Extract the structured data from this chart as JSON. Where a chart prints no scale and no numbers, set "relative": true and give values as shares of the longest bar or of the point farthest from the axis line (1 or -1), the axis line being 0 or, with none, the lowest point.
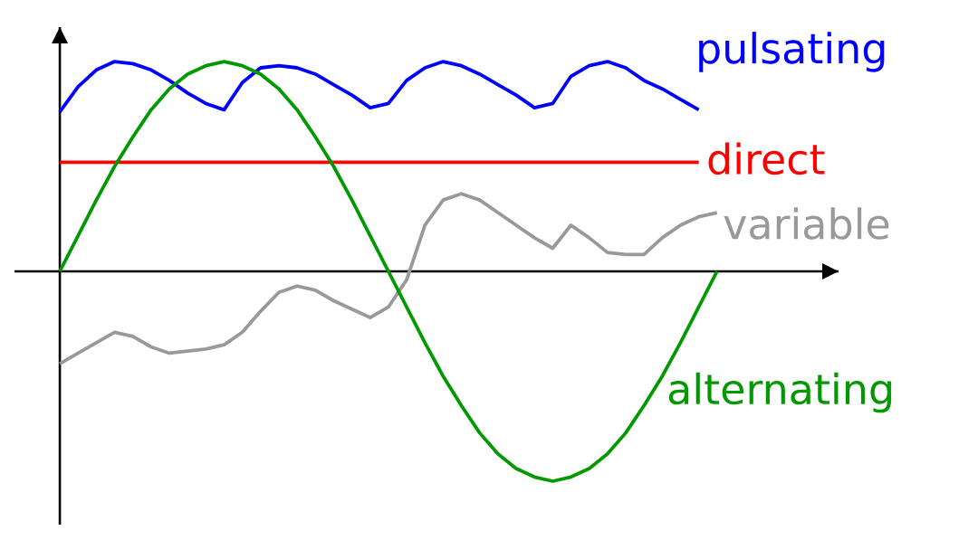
{
  "chart_data": {
    "type": "line",
    "relative": true,
    "categories": [
      null,
      null,
      null,
      null,
      null,
      null,
      null,
      null,
      null,
      null,
      null,
      null,
      null,
      null,
      null,
      null,
      null,
      null,
      null,
      null,
      null,
      null,
      null,
      null,
      null,
      null,
      null,
      null,
      null,
      null,
      null,
      null,
      null,
      null,
      null,
      null,
      null
    ],
    "series": [
      {
        "name": "pulsating",
        "color": "#0000ff",
        "values": [
          0.76,
          0.88,
          0.96,
          1.0,
          0.99,
          0.96,
          0.91,
          0.85,
          0.8,
          0.77,
          0.9,
          0.97,
          0.98,
          0.97,
          0.94,
          0.89,
          0.84,
          0.78,
          0.8,
          0.91,
          0.97,
          1.0,
          0.98,
          0.94,
          0.89,
          0.84,
          0.78,
          0.8,
          0.93,
          0.98,
          1.0,
          0.97,
          0.91,
          0.87,
          0.82,
          0.77,
          null
        ]
      },
      {
        "name": "direct",
        "color": "#ff0000",
        "values": [
          0.52,
          0.52,
          0.52,
          0.52,
          0.52,
          0.52,
          0.52,
          0.52,
          0.52,
          0.52,
          0.52,
          0.52,
          0.52,
          0.52,
          0.52,
          0.52,
          0.52,
          0.52,
          0.52,
          0.52,
          0.52,
          0.52,
          0.52,
          0.52,
          0.52,
          0.52,
          0.52,
          0.52,
          0.52,
          0.52,
          0.52,
          0.52,
          0.52,
          0.52,
          0.52,
          0.52,
          null
        ]
      },
      {
        "name": "variable",
        "color": "#999999",
        "values": [
          -0.44,
          -0.39,
          -0.34,
          -0.29,
          -0.31,
          -0.36,
          -0.39,
          -0.38,
          -0.37,
          -0.35,
          -0.29,
          -0.19,
          -0.1,
          -0.07,
          -0.09,
          -0.14,
          -0.18,
          -0.22,
          -0.17,
          -0.04,
          0.22,
          0.34,
          0.37,
          0.34,
          0.28,
          0.22,
          0.16,
          0.11,
          0.22,
          0.16,
          0.09,
          0.08,
          0.08,
          0.16,
          0.22,
          0.26,
          0.28
        ]
      },
      {
        "name": "alternating",
        "color": "#009900",
        "values": [
          0,
          0.17,
          0.34,
          0.5,
          0.64,
          0.77,
          0.87,
          0.94,
          0.98,
          1.0,
          0.98,
          0.94,
          0.87,
          0.77,
          0.64,
          0.5,
          0.34,
          0.17,
          0,
          -0.17,
          -0.34,
          -0.5,
          -0.64,
          -0.77,
          -0.87,
          -0.94,
          -0.98,
          -1.0,
          -0.98,
          -0.94,
          -0.87,
          -0.77,
          -0.64,
          -0.5,
          -0.34,
          -0.17,
          0
        ]
      }
    ]
  }
}
